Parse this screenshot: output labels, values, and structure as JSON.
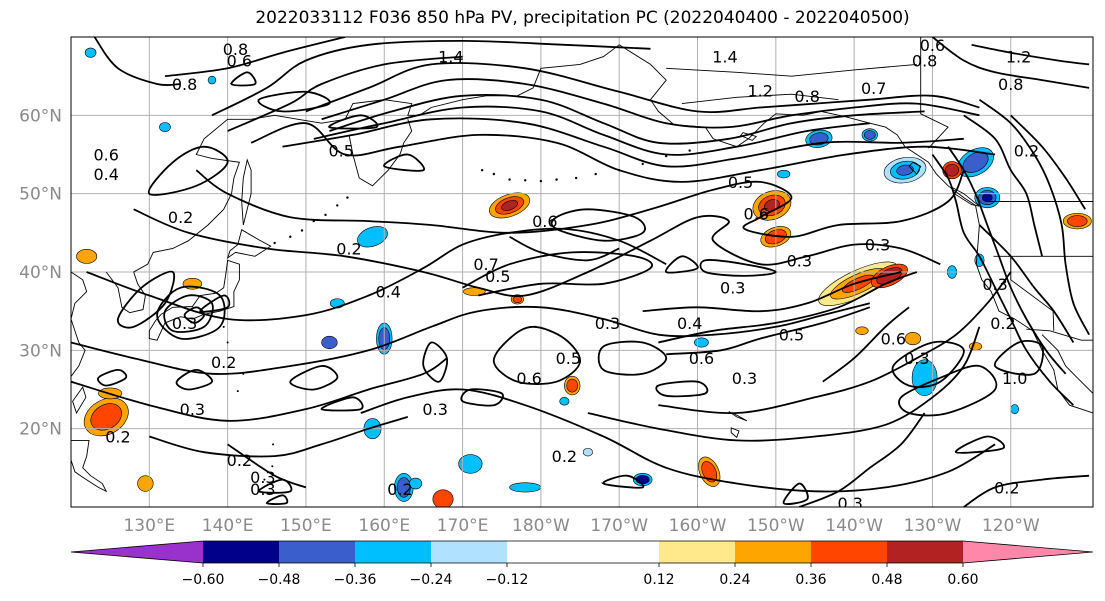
{
  "title": "2022033112 F036 850 hPa PV, precipitation PC (2022040400 - 2022040500)",
  "map": {
    "lat_labels": [
      "60°N",
      "50°N",
      "40°N",
      "30°N",
      "20°N"
    ],
    "lon_labels": [
      "130°E",
      "140°E",
      "150°E",
      "160°E",
      "170°E",
      "180°W",
      "170°W",
      "160°W",
      "150°W",
      "140°W",
      "130°W",
      "120°W"
    ],
    "lat_values": [
      60,
      50,
      40,
      30,
      20
    ],
    "lon_values": [
      130,
      140,
      150,
      160,
      170,
      180,
      190,
      200,
      210,
      220,
      230,
      240
    ],
    "extent": {
      "lon_min": 120,
      "lon_max": 250.5,
      "lat_min": 10,
      "lat_max": 70
    },
    "contour_labels": [
      {
        "text": "1.4",
        "lon": 168.5,
        "lat": 67.5
      },
      {
        "text": "1.4",
        "lon": 203.5,
        "lat": 67.5
      },
      {
        "text": "1.2",
        "lon": 208.0,
        "lat": 63.2
      },
      {
        "text": "0.8",
        "lon": 214.0,
        "lat": 62.5
      },
      {
        "text": "0.7",
        "lon": 222.5,
        "lat": 63.5
      },
      {
        "text": "0.6",
        "lon": 230.0,
        "lat": 69.0
      },
      {
        "text": "0.8",
        "lon": 229.0,
        "lat": 67.0
      },
      {
        "text": "1.2",
        "lon": 241.0,
        "lat": 67.5
      },
      {
        "text": "0.8",
        "lon": 240.0,
        "lat": 64.0
      },
      {
        "text": "0.2",
        "lon": 242.0,
        "lat": 55.5
      },
      {
        "text": "0.8",
        "lon": 134.5,
        "lat": 64.0
      },
      {
        "text": "0.8",
        "lon": 141.0,
        "lat": 68.5
      },
      {
        "text": "0.6",
        "lon": 141.5,
        "lat": 67.0
      },
      {
        "text": "0.6",
        "lon": 124.5,
        "lat": 55.0
      },
      {
        "text": "0.4",
        "lon": 124.5,
        "lat": 52.5
      },
      {
        "text": "0.5",
        "lon": 154.5,
        "lat": 55.5
      },
      {
        "text": "0.2",
        "lon": 134.0,
        "lat": 47.0
      },
      {
        "text": "0.2",
        "lon": 155.5,
        "lat": 43.0
      },
      {
        "text": "0.6",
        "lon": 180.5,
        "lat": 46.5
      },
      {
        "text": "0.5",
        "lon": 205.5,
        "lat": 51.5
      },
      {
        "text": "0.6",
        "lon": 207.5,
        "lat": 47.5
      },
      {
        "text": "0.3",
        "lon": 223.0,
        "lat": 43.5
      },
      {
        "text": "0.3",
        "lon": 213.0,
        "lat": 41.5
      },
      {
        "text": "0.7",
        "lon": 173.0,
        "lat": 41.0
      },
      {
        "text": "0.5",
        "lon": 174.5,
        "lat": 39.5
      },
      {
        "text": "0.4",
        "lon": 160.5,
        "lat": 37.5
      },
      {
        "text": "0.3",
        "lon": 188.5,
        "lat": 33.5
      },
      {
        "text": "0.3",
        "lon": 204.5,
        "lat": 38.0
      },
      {
        "text": "0.4",
        "lon": 199.0,
        "lat": 33.5
      },
      {
        "text": "0.5",
        "lon": 212.0,
        "lat": 32.0
      },
      {
        "text": "0.6",
        "lon": 225.0,
        "lat": 31.5
      },
      {
        "text": "0.6",
        "lon": 200.5,
        "lat": 29.0
      },
      {
        "text": "0.3",
        "lon": 206.0,
        "lat": 26.5
      },
      {
        "text": "0.5",
        "lon": 183.5,
        "lat": 29.0
      },
      {
        "text": "0.6",
        "lon": 178.5,
        "lat": 26.5
      },
      {
        "text": "0.3",
        "lon": 166.5,
        "lat": 22.5
      },
      {
        "text": "0.2",
        "lon": 183.0,
        "lat": 16.5
      },
      {
        "text": "0.2",
        "lon": 139.5,
        "lat": 28.5
      },
      {
        "text": "0.3",
        "lon": 134.5,
        "lat": 33.5
      },
      {
        "text": "0.3",
        "lon": 135.5,
        "lat": 22.5
      },
      {
        "text": "0.2",
        "lon": 126.0,
        "lat": 19.0
      },
      {
        "text": "0.2",
        "lon": 141.5,
        "lat": 16.0
      },
      {
        "text": "0.3",
        "lon": 144.5,
        "lat": 13.8
      },
      {
        "text": "0.3",
        "lon": 144.5,
        "lat": 12.3
      },
      {
        "text": "0.2",
        "lon": 162.0,
        "lat": 12.3
      },
      {
        "text": "0.3",
        "lon": 238.0,
        "lat": 38.5
      },
      {
        "text": "0.3",
        "lon": 228.0,
        "lat": 29.0
      },
      {
        "text": "0.2",
        "lon": 239.0,
        "lat": 33.5
      },
      {
        "text": "1.0",
        "lon": 240.5,
        "lat": 26.5
      },
      {
        "text": "0.2",
        "lon": 239.5,
        "lat": 12.5
      },
      {
        "text": "0.3",
        "lon": 219.5,
        "lat": 10.5
      }
    ]
  },
  "colorbar": {
    "tick_labels": [
      "−0.60",
      "−0.48",
      "−0.36",
      "−0.24",
      "−0.12",
      "0.12",
      "0.24",
      "0.36",
      "0.48",
      "0.60"
    ],
    "tick_values": [
      -0.6,
      -0.48,
      -0.36,
      -0.24,
      -0.12,
      0.12,
      0.24,
      0.36,
      0.48,
      0.6
    ],
    "colors": [
      "#9932cc",
      "#00008b",
      "#3a5fcd",
      "#00bfff",
      "#b0e2ff",
      "#ffffff",
      "#ffe98a",
      "#ffa500",
      "#ff4500",
      "#b22222",
      "#ff88aa"
    ]
  },
  "colors": {
    "contour": "#000000",
    "coast": "#000000",
    "grid": "#b0b0b0",
    "frame": "#000000",
    "tick_text": "#8a8a8a"
  }
}
